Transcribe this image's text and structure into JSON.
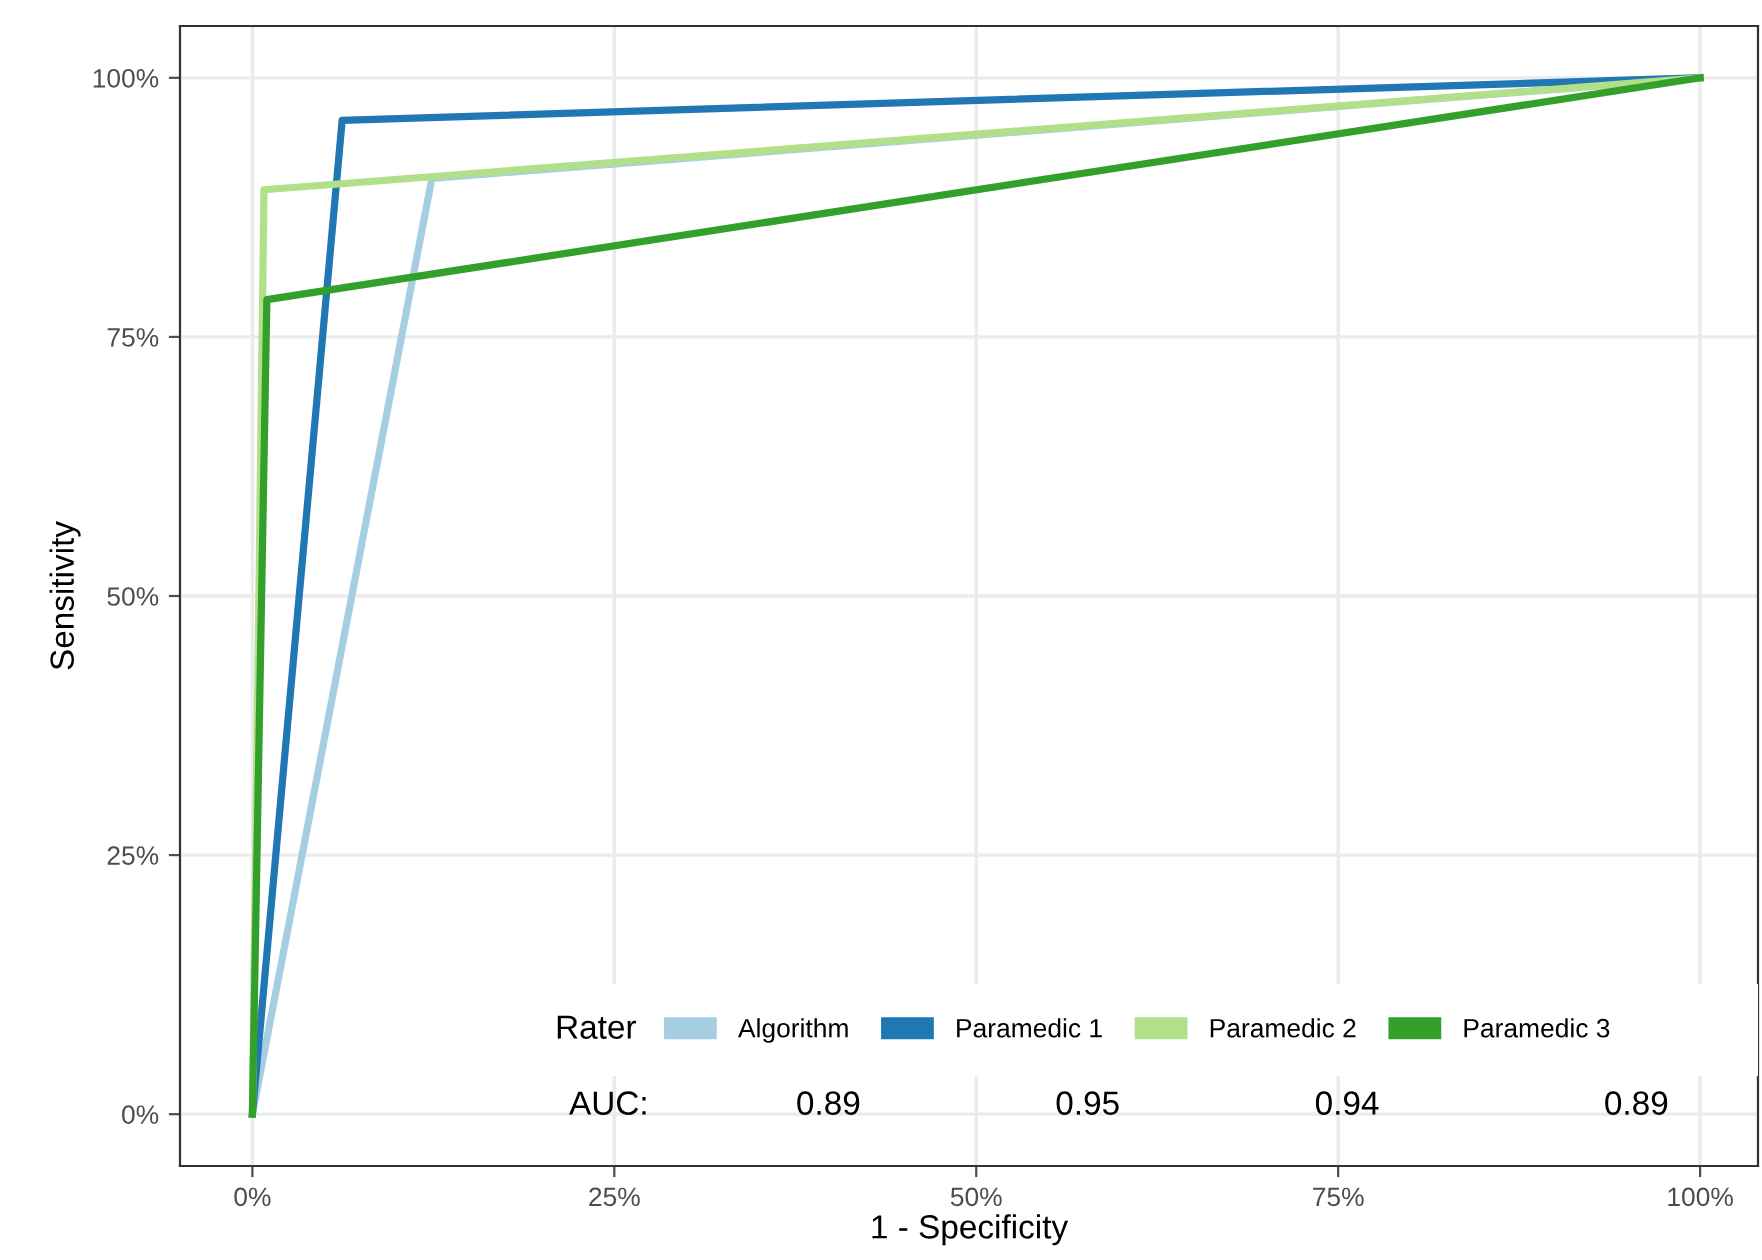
{
  "chart_data": {
    "type": "line",
    "xlabel": "1 - Specificity",
    "ylabel": "Sensitivity",
    "legend_title": "Rater",
    "series": [
      {
        "name": "Algorithm",
        "color": "#a6cee3",
        "x": [
          0,
          12.4,
          100
        ],
        "values": [
          0,
          90.3,
          100
        ]
      },
      {
        "name": "Paramedic 1",
        "color": "#1f78b4",
        "x": [
          0,
          6.2,
          100
        ],
        "values": [
          0,
          95.9,
          100
        ]
      },
      {
        "name": "Paramedic 2",
        "color": "#b2df8a",
        "x": [
          0,
          0.8,
          100
        ],
        "values": [
          0,
          89.2,
          100
        ]
      },
      {
        "name": "Paramedic 3",
        "color": "#33a02c",
        "x": [
          0,
          1.0,
          100
        ],
        "values": [
          0,
          78.6,
          100
        ]
      }
    ],
    "annotations": [
      "AUC:",
      "0.89",
      "0.95",
      "0.94",
      "0.89"
    ],
    "xlim": [
      -5,
      104
    ],
    "ylim": [
      -5,
      105
    ],
    "xticks": [
      {
        "value": 0,
        "label": "0%"
      },
      {
        "value": 25,
        "label": "25%"
      },
      {
        "value": 50,
        "label": "50%"
      },
      {
        "value": 75,
        "label": "75%"
      },
      {
        "value": 100,
        "label": "100%"
      }
    ],
    "yticks": [
      {
        "value": 0,
        "label": "0%"
      },
      {
        "value": 25,
        "label": "25%"
      },
      {
        "value": 50,
        "label": "50%"
      },
      {
        "value": 75,
        "label": "75%"
      },
      {
        "value": 100,
        "label": "100%"
      }
    ],
    "grid": true,
    "legend": "bottom right",
    "marker": "none",
    "line_style": "solid"
  }
}
